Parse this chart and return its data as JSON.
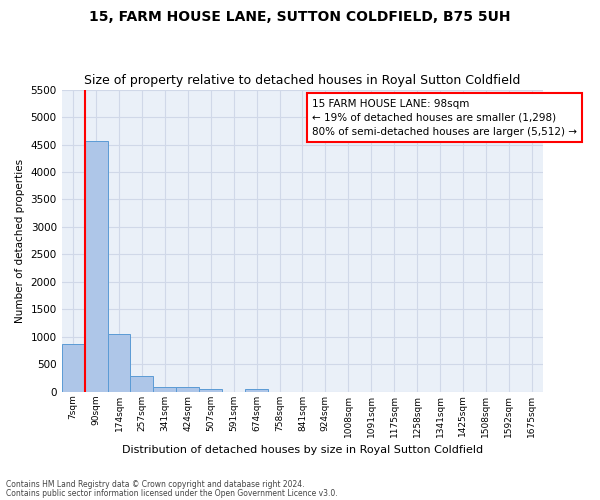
{
  "title": "15, FARM HOUSE LANE, SUTTON COLDFIELD, B75 5UH",
  "subtitle": "Size of property relative to detached houses in Royal Sutton Coldfield",
  "xlabel": "Distribution of detached houses by size in Royal Sutton Coldfield",
  "ylabel": "Number of detached properties",
  "footnote1": "Contains HM Land Registry data © Crown copyright and database right 2024.",
  "footnote2": "Contains public sector information licensed under the Open Government Licence v3.0.",
  "bar_labels": [
    "7sqm",
    "90sqm",
    "174sqm",
    "257sqm",
    "341sqm",
    "424sqm",
    "507sqm",
    "591sqm",
    "674sqm",
    "758sqm",
    "841sqm",
    "924sqm",
    "1008sqm",
    "1091sqm",
    "1175sqm",
    "1258sqm",
    "1341sqm",
    "1425sqm",
    "1508sqm",
    "1592sqm",
    "1675sqm"
  ],
  "bar_values": [
    870,
    4560,
    1060,
    290,
    90,
    85,
    55,
    0,
    55,
    0,
    0,
    0,
    0,
    0,
    0,
    0,
    0,
    0,
    0,
    0,
    0
  ],
  "bar_color": "#aec6e8",
  "bar_edge_color": "#5b9bd5",
  "annotation_text": "15 FARM HOUSE LANE: 98sqm\n← 19% of detached houses are smaller (1,298)\n80% of semi-detached houses are larger (5,512) →",
  "annotation_box_color": "white",
  "annotation_box_edge": "red",
  "red_line_color": "red",
  "ylim": [
    0,
    5500
  ],
  "yticks": [
    0,
    500,
    1000,
    1500,
    2000,
    2500,
    3000,
    3500,
    4000,
    4500,
    5000,
    5500
  ],
  "grid_color": "#d0d8e8",
  "bg_color": "#eaf0f8",
  "title_fontsize": 10,
  "subtitle_fontsize": 9
}
